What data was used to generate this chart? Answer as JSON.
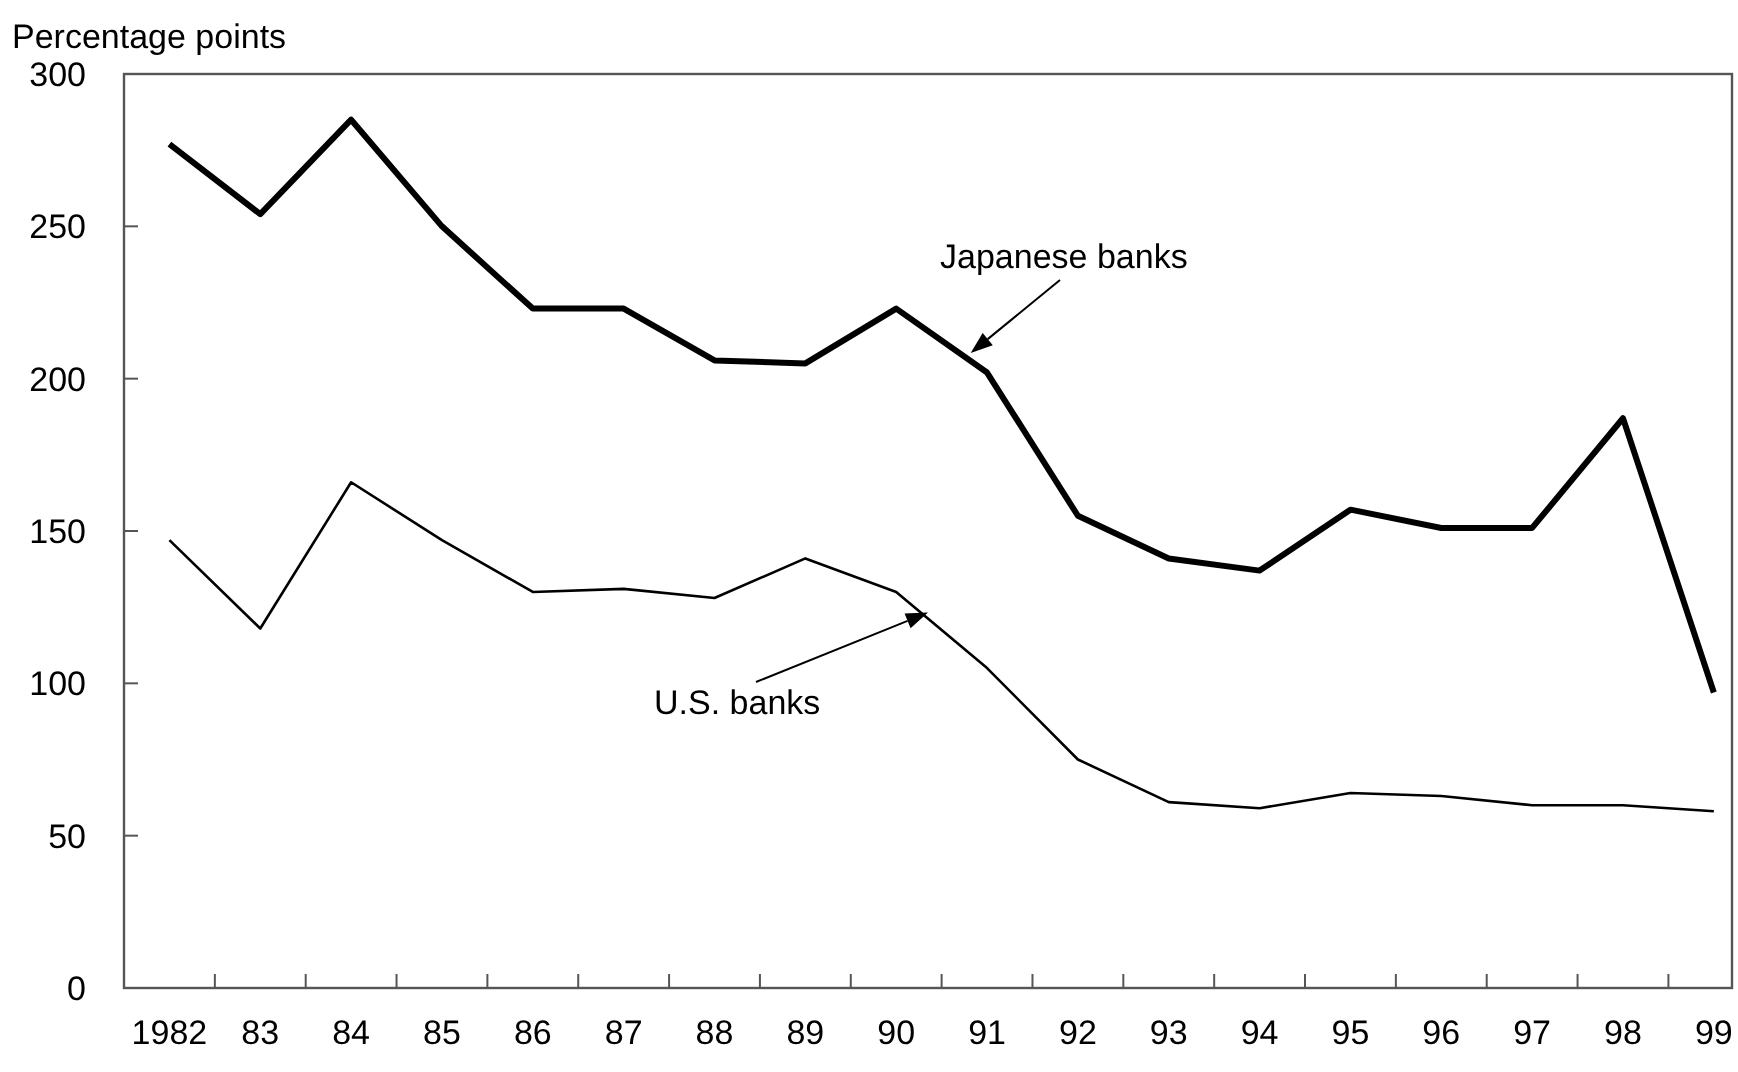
{
  "chart_data": {
    "type": "line",
    "ylabel": "Percentage points",
    "categories": [
      "1982",
      "83",
      "84",
      "85",
      "86",
      "87",
      "88",
      "89",
      "90",
      "91",
      "92",
      "93",
      "94",
      "95",
      "96",
      "97",
      "98",
      "99"
    ],
    "ylim": [
      0,
      300
    ],
    "yticks": [
      0,
      50,
      100,
      150,
      200,
      250,
      300
    ],
    "grid": false,
    "series": [
      {
        "name": "Japanese banks",
        "color": "#000000",
        "values": [
          277,
          254,
          285,
          250,
          223,
          223,
          206,
          205,
          223,
          202,
          155,
          141,
          137,
          157,
          151,
          151,
          187,
          97
        ]
      },
      {
        "name": "U.S. banks",
        "color": "#000000",
        "values": [
          147,
          118,
          166,
          147,
          130,
          131,
          128,
          141,
          130,
          105,
          75,
          61,
          59,
          64,
          63,
          60,
          60,
          58
        ]
      }
    ]
  }
}
